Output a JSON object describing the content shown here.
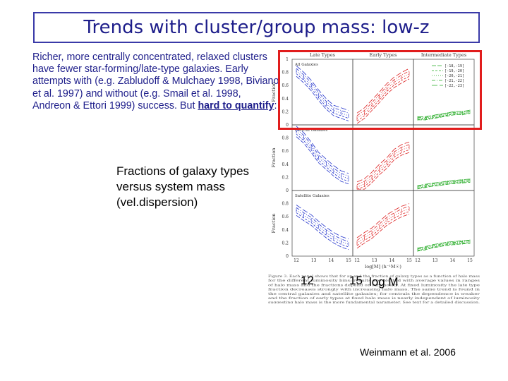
{
  "slide": {
    "title": "Trends with cluster/group mass: low-z",
    "para_before": "Richer, more centrally concentrated, relaxed clusters have fewer star-forming/late-type galaxies.  Early attempts with (e.g. Zabludoff & Mulchaey 1998, Biviano et al. 1997) and without (e.g. Smail et al. 1998,  Andreon & Ettori 1999) success. But ",
    "para_emph": "hard to quantify",
    "para_after": ":",
    "caption": "Fractions of galaxy types versus system mass (vel.dispersion)",
    "credit": "Weinmann et al. 2006",
    "overlay_tick_12": "12",
    "overlay_tick_15": "15",
    "overlay_axis": "log M"
  },
  "figure": {
    "column_titles": [
      "Late Types",
      "Early Types",
      "Intermediate Types"
    ],
    "row_labels": [
      "All Galaxies",
      "Central Galaxies",
      "Satellite Galaxies"
    ],
    "ylabel": "Fraction",
    "xlabel": "log[M] (h⁻¹M☉)",
    "y_ticks": [
      "0",
      "0.2",
      "0.4",
      "0.6",
      "0.8",
      "1"
    ],
    "x_ticks": [
      "12",
      "13",
      "14",
      "15"
    ],
    "legend": [
      "[-18,-19]",
      "[-19,-20]",
      "[-20,-21]",
      "[-21,-22]",
      "[-22,-23]"
    ],
    "colors": {
      "late": "#2233cc",
      "early": "#dd2222",
      "intermediate": "#22aa22",
      "highlight": "#e11d1d"
    },
    "caption_lines": [
      "Figure 3. Each panel shows that for an and the fraction of galaxy types as a function of halo mass",
      "for the different luminosity bins; results are plotted with average values in ranges",
      "of halo mass and the fractions depend on luminosity. At fixed luminosity the late type",
      "fraction decreases strongly with increasing halo mass. The same trend is found in",
      "the central galaxies and satellite galaxies; for centrals the dependence is weaker",
      "and the fraction of early types at fixed halo mass is nearly independent of luminosity",
      "suggesting halo mass is the more fundamental parameter. See text for a detailed discussion."
    ]
  }
}
